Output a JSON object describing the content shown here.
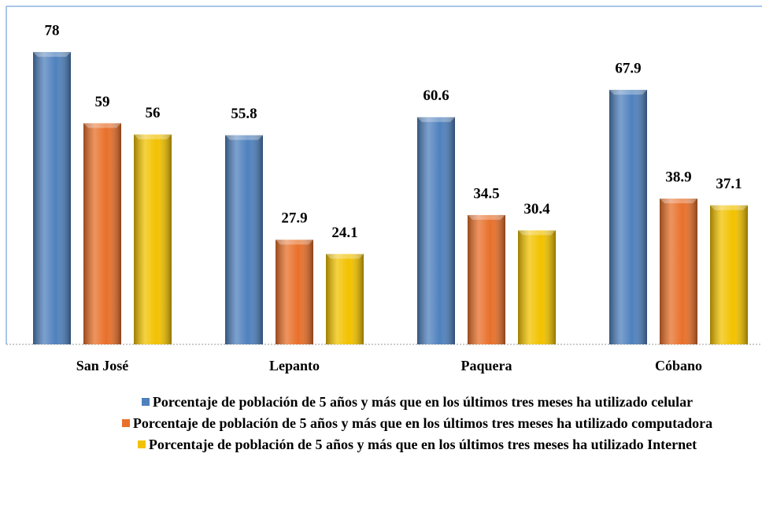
{
  "chart_data": {
    "type": "bar",
    "categories": [
      "San José",
      "Lepanto",
      "Paquera",
      "Cóbano"
    ],
    "series": [
      {
        "name": "Porcentaje de población de 5 años y más que en los últimos tres meses ha utilizado celular",
        "color": "#4f81bd",
        "values": [
          78,
          55.8,
          60.6,
          67.9
        ]
      },
      {
        "name": "Porcentaje de población de 5 años y más que en los últimos tres meses ha utilizado computadora",
        "color": "#e8702a",
        "values": [
          59,
          27.9,
          34.5,
          38.9
        ]
      },
      {
        "name": "Porcentaje de población de 5 años y más que en los últimos tres meses ha utilizado Internet",
        "color": "#f2c200",
        "values": [
          56,
          24.1,
          30.4,
          37.1
        ]
      }
    ],
    "ylim": [
      0,
      90
    ],
    "legend": "bottom"
  }
}
